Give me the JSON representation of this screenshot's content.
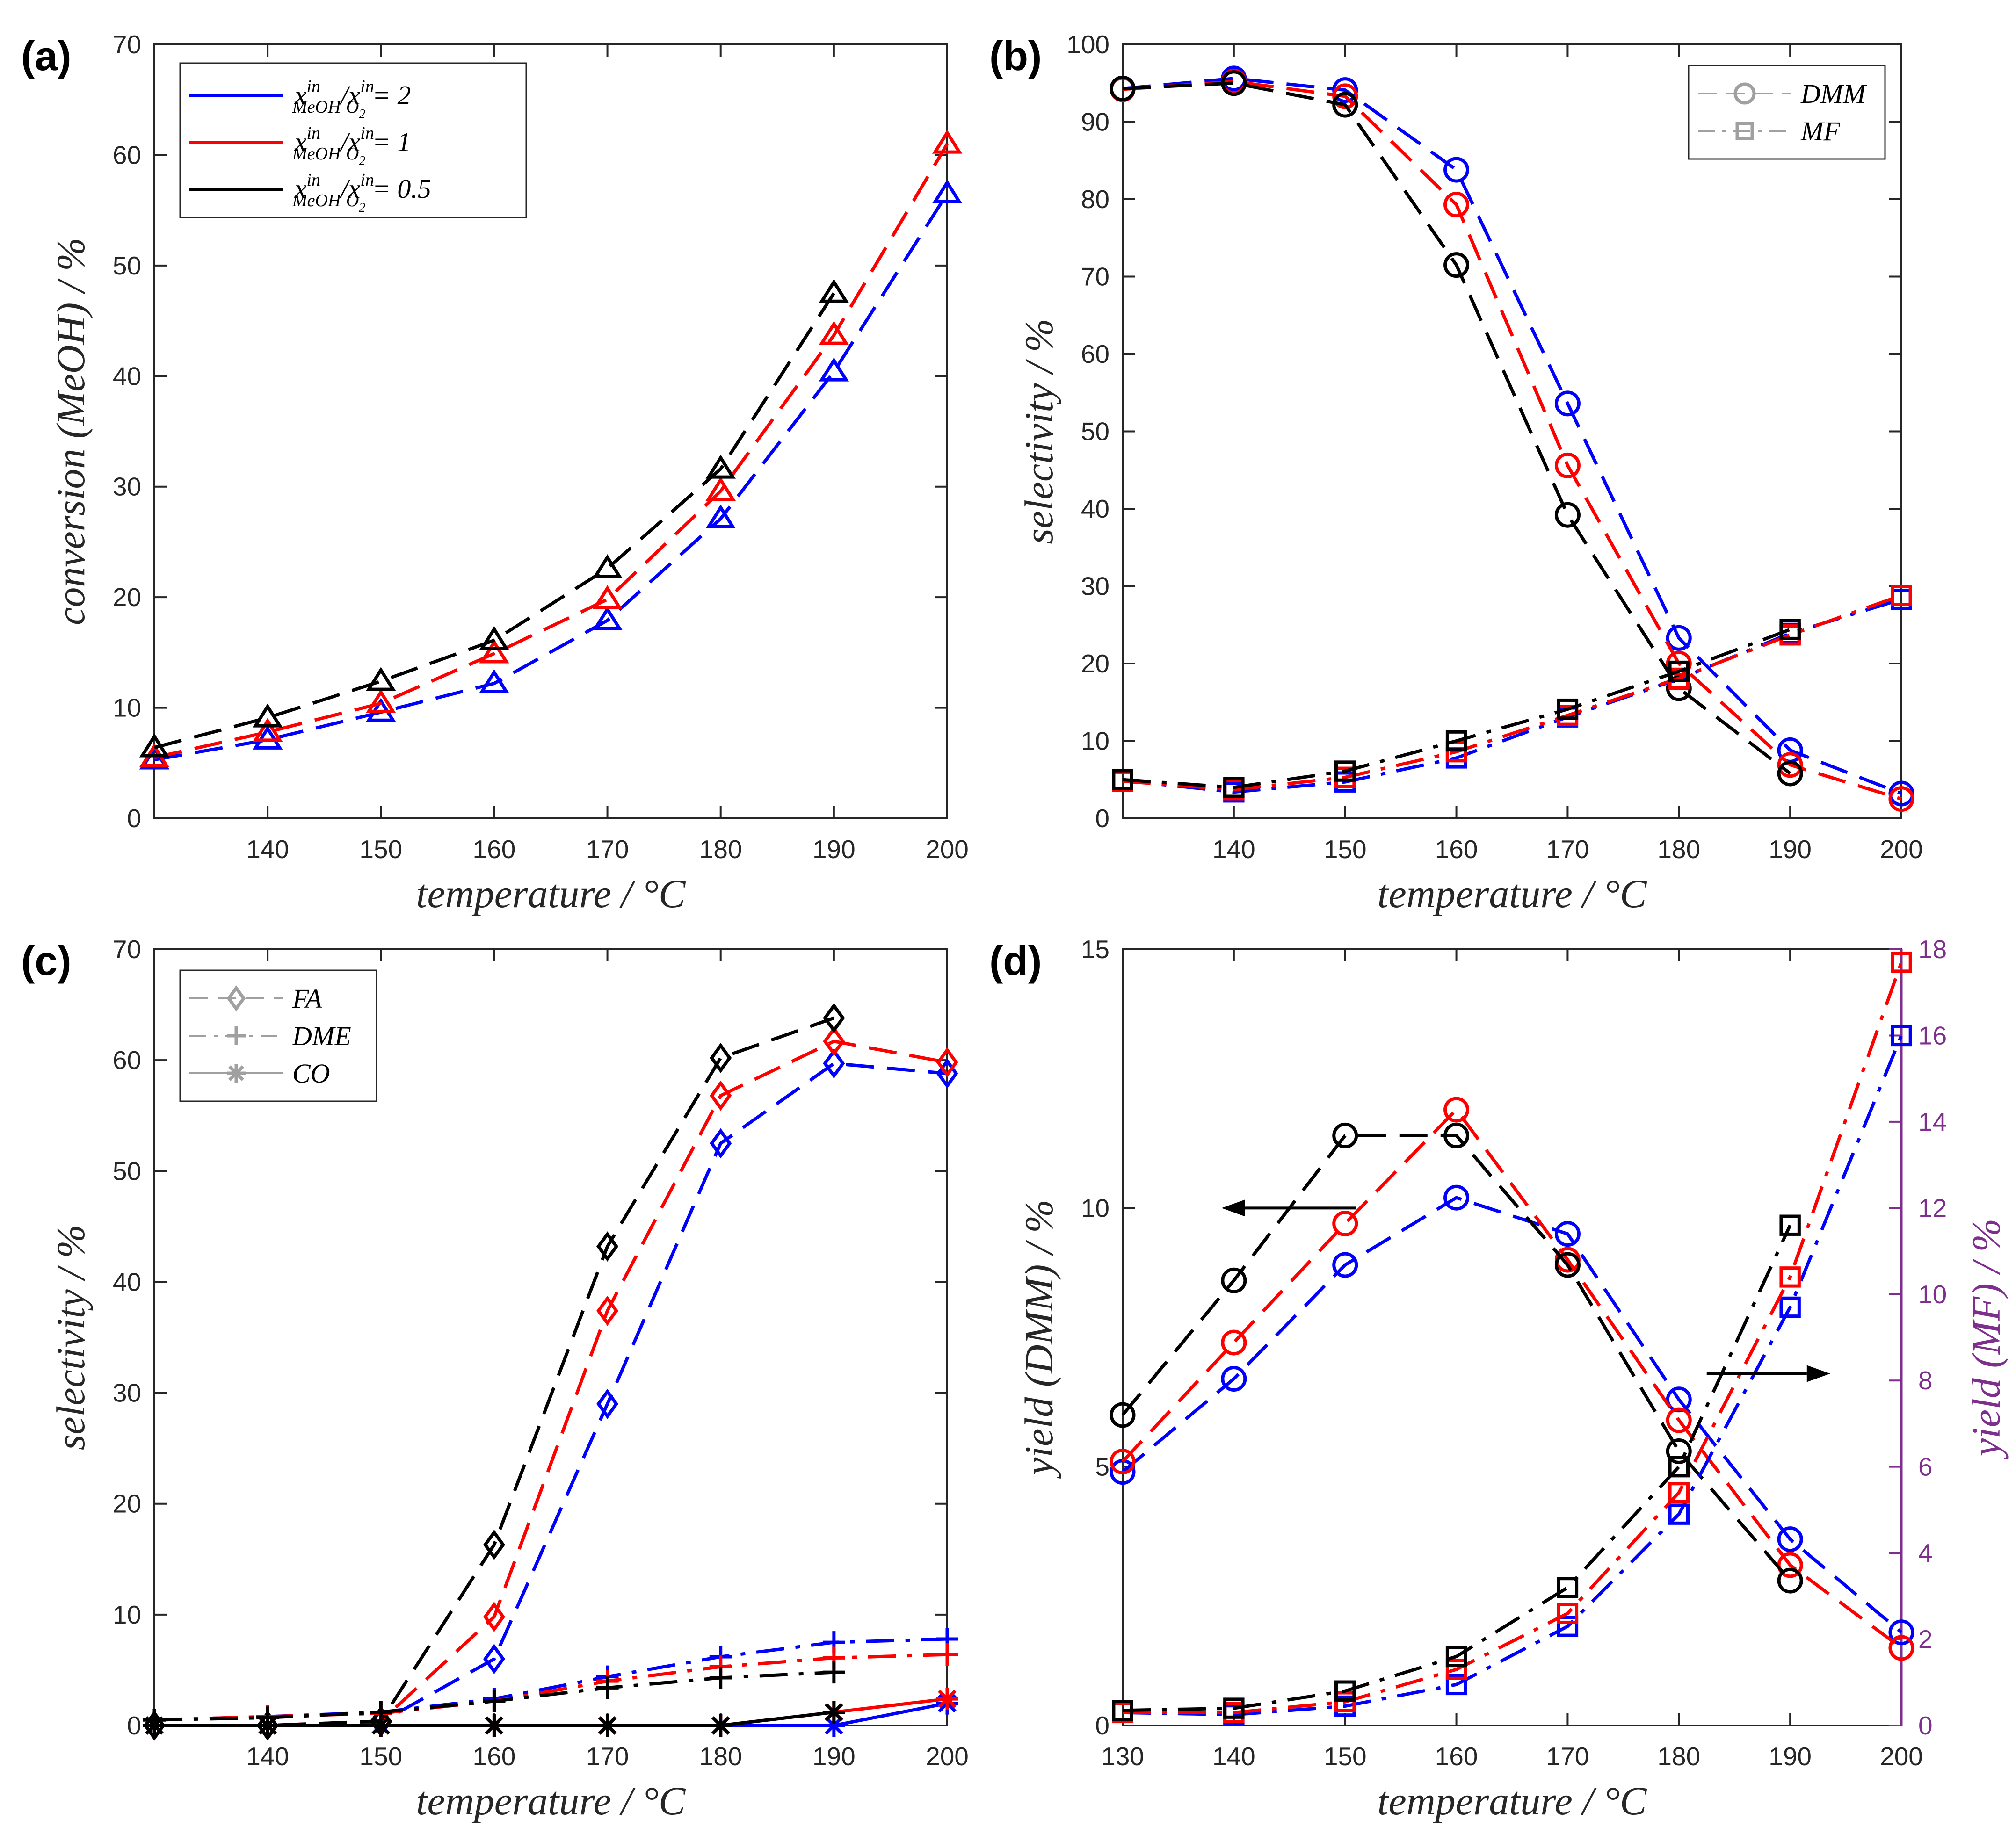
{
  "colors": {
    "ratio_2": "#0000ff",
    "ratio_1": "#ff0000",
    "ratio_0_5": "#000000",
    "secondary_axis": "#7e2f8e",
    "legend_gray": "#a0a0a0"
  },
  "legend_ratio": {
    "var_x": "x",
    "sup": "in",
    "sub_num": "MeOH",
    "sub_den": "O",
    "sub_den_2": "2",
    "entries": [
      {
        "label": "x_MeOH^in / x_O2^in = 2",
        "value": "= 2",
        "color": "#0000ff"
      },
      {
        "label": "x_MeOH^in / x_O2^in = 1",
        "value": "= 1",
        "color": "#ff0000"
      },
      {
        "label": "x_MeOH^in / x_O2^in = 0.5",
        "value": "= 0.5",
        "color": "#000000"
      }
    ]
  },
  "chart_data": [
    {
      "panel": "(a)",
      "type": "line",
      "title": "",
      "xlabel": "temperature / °C",
      "ylabel": "conversion (MeOH) / %",
      "xlim": [
        130,
        200
      ],
      "ylim": [
        0,
        70
      ],
      "xticks": [
        140,
        150,
        160,
        170,
        180,
        190,
        200
      ],
      "yticks": [
        0,
        10,
        20,
        30,
        40,
        50,
        60,
        70
      ],
      "x": [
        130,
        140,
        150,
        160,
        170,
        180,
        190,
        200
      ],
      "legend_position": "top-left",
      "series": [
        {
          "name": "x_MeOH^in / x_O2^in = 2",
          "color": "#0000ff",
          "marker": "triangle",
          "style": "dashed",
          "values": [
            5.3,
            7.1,
            9.6,
            12.2,
            17.9,
            27.1,
            40.4,
            56.5
          ]
        },
        {
          "name": "x_MeOH^in / x_O2^in = 1",
          "color": "#ff0000",
          "marker": "triangle",
          "style": "dashed",
          "values": [
            5.5,
            7.8,
            10.4,
            14.9,
            19.8,
            29.6,
            43.7,
            61.0
          ]
        },
        {
          "name": "x_MeOH^in / x_O2^in = 0.5",
          "color": "#000000",
          "marker": "triangle",
          "style": "dashed",
          "values": [
            6.4,
            9.1,
            12.4,
            16.1,
            22.6,
            31.6,
            47.5,
            null
          ]
        }
      ]
    },
    {
      "panel": "(b)",
      "type": "line",
      "title": "",
      "xlabel": "temperature / °C",
      "ylabel": "selectivity / %",
      "xlim": [
        130,
        200
      ],
      "ylim": [
        0,
        100
      ],
      "xticks": [
        140,
        150,
        160,
        170,
        180,
        190,
        200
      ],
      "yticks": [
        0,
        10,
        20,
        30,
        40,
        50,
        60,
        70,
        80,
        90,
        100
      ],
      "x": [
        130,
        140,
        150,
        160,
        170,
        180,
        190,
        200
      ],
      "legend_position": "top-right",
      "legend": [
        {
          "label": "DMM",
          "marker": "circle",
          "style": "dashed"
        },
        {
          "label": "MF",
          "marker": "square",
          "style": "dashdot"
        }
      ],
      "series": [
        {
          "name": "DMM, ratio 2",
          "color": "#0000ff",
          "marker": "circle",
          "style": "dashed",
          "values": [
            94.3,
            95.6,
            94.1,
            83.8,
            53.6,
            23.3,
            8.8,
            3.2
          ]
        },
        {
          "name": "DMM, ratio 1",
          "color": "#ff0000",
          "marker": "circle",
          "style": "dashed",
          "values": [
            94.2,
            95.2,
            93.3,
            79.3,
            45.6,
            20.0,
            6.9,
            2.5
          ]
        },
        {
          "name": "DMM, ratio 0.5",
          "color": "#000000",
          "marker": "circle",
          "style": "dashed",
          "values": [
            94.3,
            95.0,
            92.2,
            71.5,
            39.2,
            16.8,
            5.8,
            null
          ]
        },
        {
          "name": "MF, ratio 2",
          "color": "#0000ff",
          "marker": "square",
          "style": "dashdot",
          "values": [
            4.9,
            3.4,
            4.7,
            7.8,
            13.1,
            18.0,
            23.9,
            28.3
          ]
        },
        {
          "name": "MF, ratio 1",
          "color": "#ff0000",
          "marker": "square",
          "style": "dashdot",
          "values": [
            4.8,
            3.7,
            5.3,
            8.6,
            13.3,
            18.1,
            23.7,
            28.8
          ]
        },
        {
          "name": "MF, ratio 0.5",
          "color": "#000000",
          "marker": "square",
          "style": "dashdot",
          "values": [
            5.0,
            4.0,
            6.1,
            10.0,
            14.1,
            19.0,
            24.4,
            null
          ]
        }
      ]
    },
    {
      "panel": "(c)",
      "type": "line",
      "title": "",
      "xlabel": "temperature / °C",
      "ylabel": "selectivity / %",
      "xlim": [
        130,
        200
      ],
      "ylim": [
        0,
        70
      ],
      "xticks": [
        140,
        150,
        160,
        170,
        180,
        190,
        200
      ],
      "yticks": [
        0,
        10,
        20,
        30,
        40,
        50,
        60,
        70
      ],
      "x": [
        130,
        140,
        150,
        160,
        170,
        180,
        190,
        200
      ],
      "legend_position": "top-left",
      "legend": [
        {
          "label": "FA",
          "marker": "diamond",
          "style": "dashed"
        },
        {
          "label": "DME",
          "marker": "plus",
          "style": "dashdot"
        },
        {
          "label": "CO",
          "marker": "asterisk",
          "style": "solid"
        }
      ],
      "series": [
        {
          "name": "FA, ratio 2",
          "color": "#0000ff",
          "marker": "diamond",
          "style": "dashed",
          "values": [
            0.0,
            0.0,
            0.3,
            6.0,
            29.0,
            52.5,
            59.7,
            58.8
          ]
        },
        {
          "name": "FA, ratio 1",
          "color": "#ff0000",
          "marker": "diamond",
          "style": "dashed",
          "values": [
            0.0,
            0.0,
            0.4,
            9.8,
            37.4,
            56.8,
            61.7,
            59.8
          ]
        },
        {
          "name": "FA, ratio 0.5",
          "color": "#000000",
          "marker": "diamond",
          "style": "dashed",
          "values": [
            0.0,
            0.0,
            0.4,
            16.3,
            43.2,
            60.2,
            63.8,
            null
          ]
        },
        {
          "name": "DME, ratio 2",
          "color": "#0000ff",
          "marker": "plus",
          "style": "dashdot",
          "values": [
            0.5,
            0.8,
            1.2,
            2.4,
            4.4,
            6.2,
            7.5,
            7.8
          ]
        },
        {
          "name": "DME, ratio 1",
          "color": "#ff0000",
          "marker": "plus",
          "style": "dashdot",
          "values": [
            0.5,
            0.8,
            1.1,
            2.2,
            4.0,
            5.3,
            6.1,
            6.4
          ]
        },
        {
          "name": "DME, ratio 0.5",
          "color": "#000000",
          "marker": "plus",
          "style": "dashdot",
          "values": [
            0.5,
            0.7,
            1.2,
            2.2,
            3.4,
            4.3,
            4.8,
            null
          ]
        },
        {
          "name": "CO, ratio 2",
          "color": "#0000ff",
          "marker": "asterisk",
          "style": "solid",
          "values": [
            0.0,
            0.0,
            0.0,
            0.0,
            0.0,
            0.0,
            0.0,
            2.0
          ]
        },
        {
          "name": "CO, ratio 1",
          "color": "#ff0000",
          "marker": "asterisk",
          "style": "solid",
          "values": [
            0.0,
            0.0,
            0.0,
            0.0,
            0.0,
            0.0,
            1.2,
            2.4
          ]
        },
        {
          "name": "CO, ratio 0.5",
          "color": "#000000",
          "marker": "asterisk",
          "style": "solid",
          "values": [
            0.0,
            0.0,
            0.0,
            0.0,
            0.0,
            0.0,
            1.2,
            null
          ]
        }
      ]
    },
    {
      "panel": "(d)",
      "type": "line",
      "title": "",
      "xlabel": "temperature / °C",
      "ylabel": "yield (DMM) / %",
      "ylabel_right": "yield (MF) / %",
      "xlim": [
        130,
        200
      ],
      "ylim": [
        0,
        15
      ],
      "ylim_right": [
        0,
        18
      ],
      "xticks": [
        130,
        140,
        150,
        160,
        170,
        180,
        190,
        200
      ],
      "yticks": [
        0,
        5,
        10,
        15
      ],
      "yticks_right": [
        0,
        2,
        4,
        6,
        8,
        10,
        12,
        14,
        16,
        18
      ],
      "x": [
        130,
        140,
        150,
        160,
        170,
        180,
        190,
        200
      ],
      "annotations": [
        "arrow pointing left to DMM axis",
        "arrow pointing right to MF axis"
      ],
      "series": [
        {
          "name": "DMM yield, ratio 2",
          "axis": "left",
          "color": "#0000ff",
          "marker": "circle",
          "style": "dashed",
          "values": [
            4.9,
            6.7,
            8.9,
            10.2,
            9.5,
            6.3,
            3.6,
            1.8
          ]
        },
        {
          "name": "DMM yield, ratio 1",
          "axis": "left",
          "color": "#ff0000",
          "marker": "circle",
          "style": "dashed",
          "values": [
            5.1,
            7.4,
            9.7,
            11.9,
            9.0,
            5.9,
            3.1,
            1.5
          ]
        },
        {
          "name": "DMM yield, ratio 0.5",
          "axis": "left",
          "color": "#000000",
          "marker": "circle",
          "style": "dashed",
          "values": [
            6.0,
            8.6,
            11.4,
            11.4,
            8.9,
            5.3,
            2.8,
            null
          ]
        },
        {
          "name": "MF yield, ratio 2",
          "axis": "right",
          "color": "#0000ff",
          "marker": "square",
          "style": "dashdot",
          "values": [
            0.3,
            0.25,
            0.45,
            0.95,
            2.3,
            4.9,
            9.7,
            16.0
          ]
        },
        {
          "name": "MF yield, ratio 1",
          "axis": "right",
          "color": "#ff0000",
          "marker": "square",
          "style": "dashdot",
          "values": [
            0.3,
            0.3,
            0.55,
            1.3,
            2.6,
            5.4,
            10.4,
            17.7
          ]
        },
        {
          "name": "MF yield, ratio 0.5",
          "axis": "right",
          "color": "#000000",
          "marker": "square",
          "style": "dashdot",
          "values": [
            0.35,
            0.4,
            0.8,
            1.6,
            3.2,
            6.0,
            11.6,
            null
          ]
        }
      ]
    }
  ]
}
